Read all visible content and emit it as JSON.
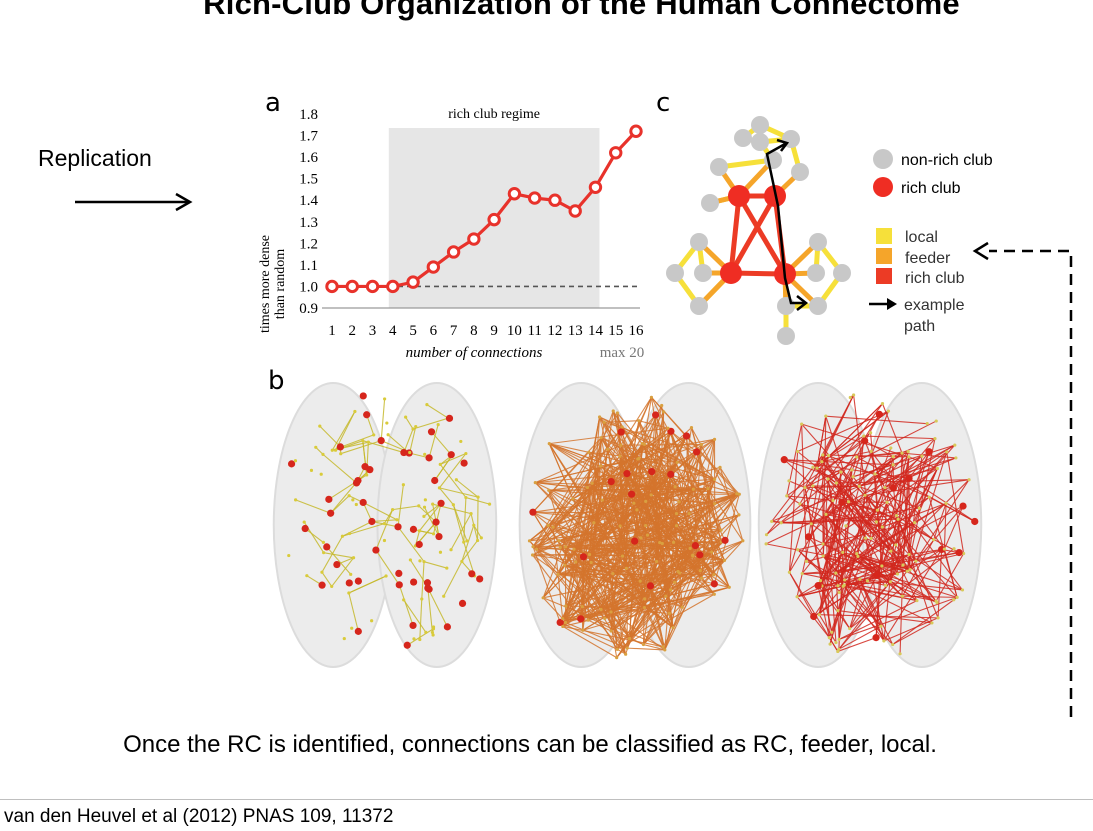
{
  "slide": {
    "title": "Rich-Club Organization of the Human Connectome",
    "replication_label": "Replication",
    "caption": "Once the RC is identified, connections can be classified as RC, feeder, local.",
    "citation": "van den Heuvel et al (2012) PNAS 109, 11372"
  },
  "panels": {
    "a": "a",
    "b": "b",
    "c": "c"
  },
  "colors": {
    "line": "#e8322b",
    "shade": "#e6e6e6",
    "non_rich_club": "#c8c8c8",
    "rich_club": "#ef2d23",
    "local": "#f6e03a",
    "feeder": "#f5a52a",
    "rich_club_edge": "#ec3b25",
    "brain_local": "#c6b92b",
    "brain_feeder": "#d4742d",
    "brain_rich": "#d1281e"
  },
  "chart_data": {
    "type": "line",
    "ylabel": "times more dense than random",
    "ylabel_lines": [
      "times more dense",
      "than random"
    ],
    "xlabel": "number of connections",
    "x_max_note": "max 20",
    "regime_label": "rich club regime",
    "regime_range": [
      4,
      14
    ],
    "reference_line": 1.0,
    "x": [
      1,
      2,
      3,
      4,
      5,
      6,
      7,
      8,
      9,
      10,
      11,
      12,
      13,
      14,
      15,
      16
    ],
    "x_tick_labels": [
      "1",
      "2",
      "3",
      "4",
      "5",
      "6",
      "7",
      "8",
      "9",
      "10",
      "11",
      "12",
      "13",
      "14",
      "15",
      "16"
    ],
    "y": [
      1.0,
      1.0,
      1.0,
      1.0,
      1.02,
      1.09,
      1.16,
      1.22,
      1.31,
      1.43,
      1.41,
      1.4,
      1.35,
      1.46,
      1.62,
      1.72
    ],
    "y_ticks": [
      0.9,
      1.0,
      1.1,
      1.2,
      1.3,
      1.4,
      1.5,
      1.6,
      1.7,
      1.8
    ],
    "y_tick_labels": [
      "0.9",
      "1.0",
      "1.1",
      "1.2",
      "1.3",
      "1.4",
      "1.5",
      "1.6",
      "1.7",
      "1.8"
    ],
    "ylim": [
      0.9,
      1.8
    ],
    "xlim": [
      1,
      16
    ]
  },
  "legend": {
    "nodes": [
      {
        "label": "non-rich club",
        "color": "#c8c8c8"
      },
      {
        "label": "rich club",
        "color": "#ef2d23"
      }
    ],
    "edges": [
      {
        "label": "local",
        "color": "#f6e03a"
      },
      {
        "label": "feeder",
        "color": "#f5a52a"
      },
      {
        "label": "rich club",
        "color": "#ec3b25"
      }
    ],
    "path_label_lines": [
      "example",
      "path"
    ]
  }
}
